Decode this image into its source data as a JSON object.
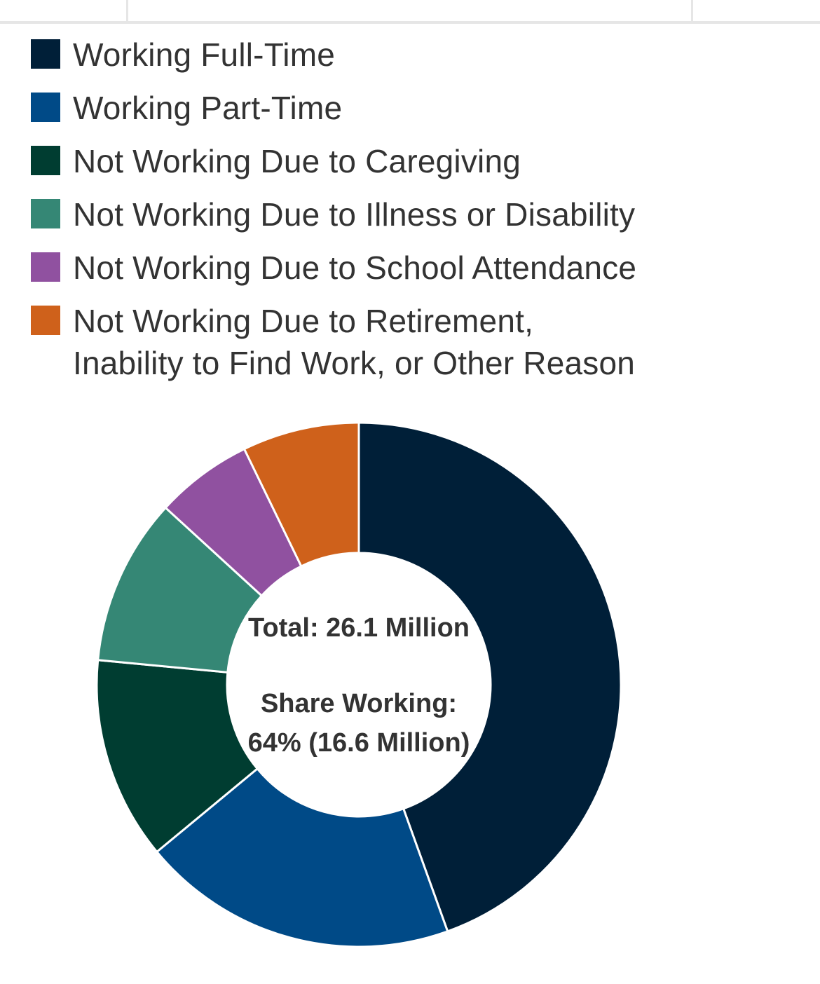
{
  "chart_data": {
    "type": "pie",
    "variant": "donut",
    "categories": [
      "Working Full-Time",
      "Working Part-Time",
      "Not Working Due to Caregiving",
      "Not Working Due to Illness or Disability",
      "Not Working Due to School Attendance",
      "Not Working Due to Retirement, Inability to Find Work, or Other Reason"
    ],
    "values": [
      44.5,
      19.5,
      12.5,
      10.3,
      6.0,
      7.2
    ],
    "colors": [
      "#001f38",
      "#004a87",
      "#003d31",
      "#358775",
      "#9051a0",
      "#cf611b"
    ],
    "legend_lines": [
      [
        "Working Full-Time"
      ],
      [
        "Working Part-Time"
      ],
      [
        "Not Working Due to Caregiving"
      ],
      [
        "Not Working Due to Illness or Disability"
      ],
      [
        "Not Working Due to School Attendance"
      ],
      [
        "Not Working Due to Retirement,",
        "Inability to Find Work, or Other Reason"
      ]
    ],
    "legend_position": "top-left",
    "center_labels": {
      "total": "Total: 26.1 Million",
      "share_heading": "Share Working:",
      "share_value": "64% (16.6 Million)"
    }
  }
}
